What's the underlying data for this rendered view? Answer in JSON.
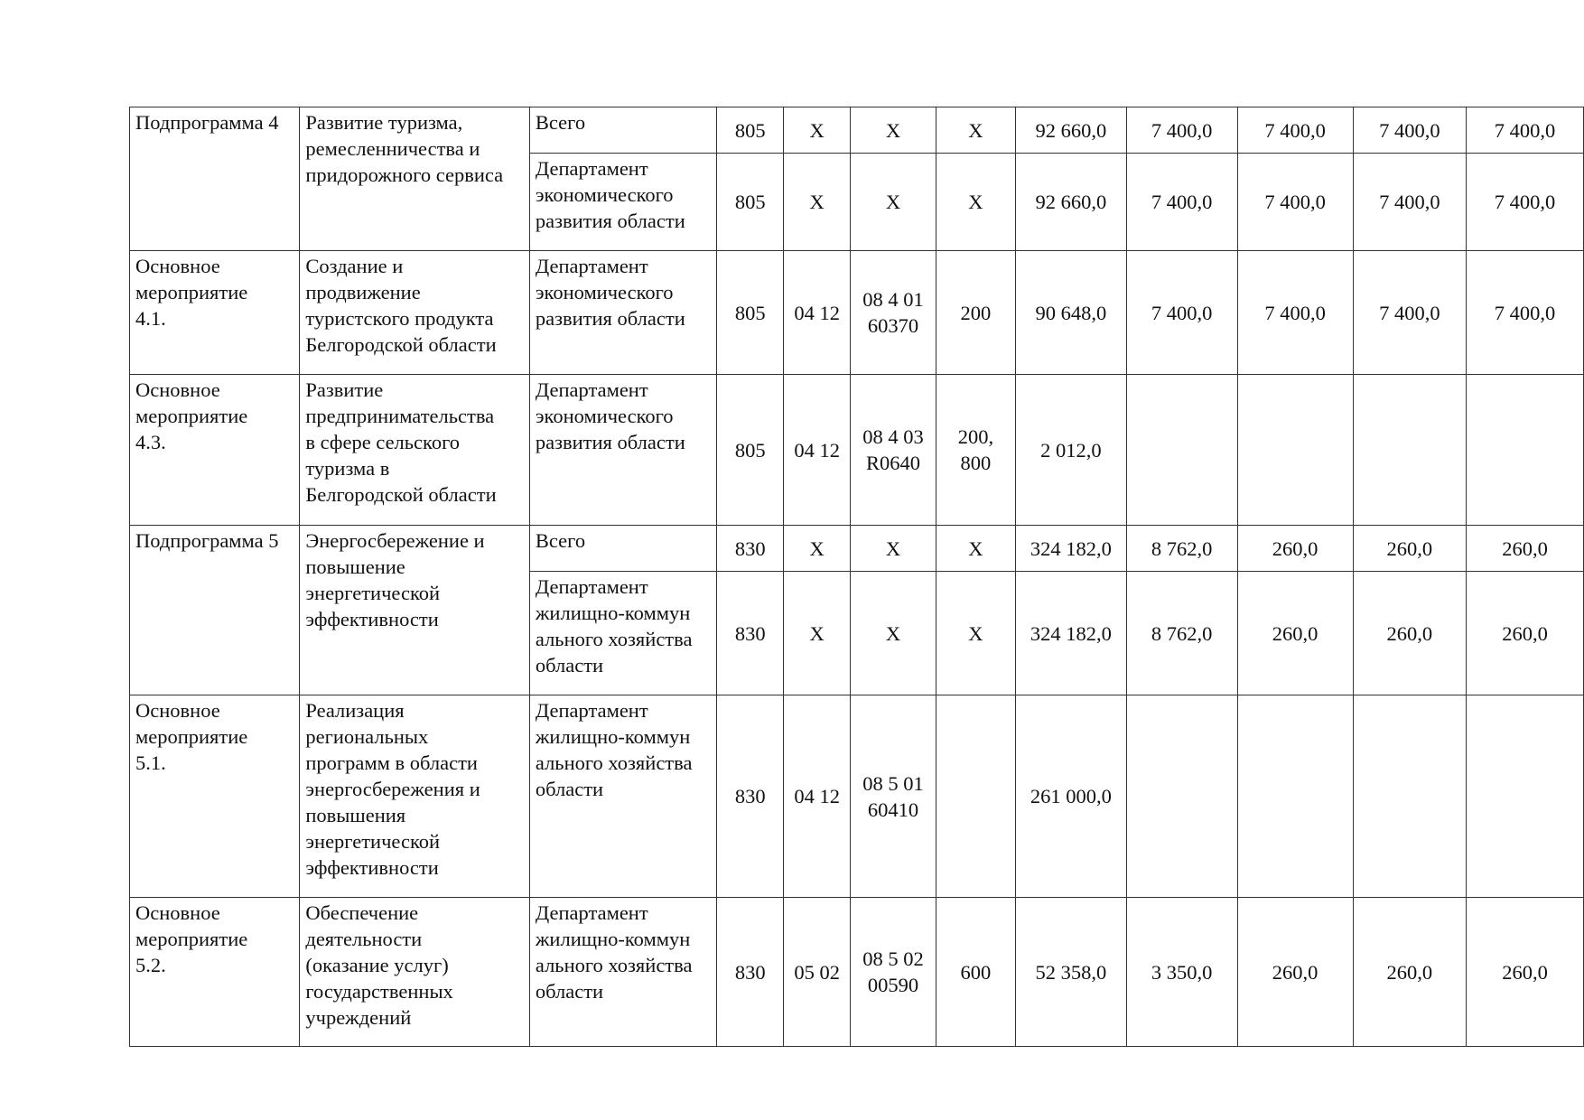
{
  "rows": [
    {
      "cells": [
        {
          "t": "Подпрограмма 4",
          "rs": 2
        },
        {
          "t": "Развитие туризма,\nремесленничества и\nпридорожного сервиса",
          "rs": 2
        },
        {
          "t": "Всего"
        },
        "805",
        "X",
        "X",
        "X",
        "92 660,0",
        "7 400,0",
        "7 400,0",
        "7 400,0",
        "7 400,0"
      ]
    },
    {
      "cells": [
        {
          "t": "Департамент\nэкономического\nразвития области"
        },
        "805",
        "X",
        "X",
        "X",
        "92 660,0",
        "7 400,0",
        "7 400,0",
        "7 400,0",
        "7 400,0"
      ]
    },
    {
      "cells": [
        {
          "t": "Основное\nмероприятие\n4.1."
        },
        {
          "t": "Создание и\nпродвижение\nтуристского продукта\nБелгородской области"
        },
        {
          "t": "Департамент\nэкономического\nразвития области"
        },
        "805",
        "04 12",
        "08 4 01\n60370",
        "200",
        "90 648,0",
        "7 400,0",
        "7 400,0",
        "7 400,0",
        "7 400,0"
      ]
    },
    {
      "cells": [
        {
          "t": "Основное\nмероприятие\n4.3."
        },
        {
          "t": "Развитие\nпредпринимательства\nв сфере сельского\nтуризма в\nБелгородской области"
        },
        {
          "t": "Департамент\nэкономического\nразвития области"
        },
        "805",
        "04 12",
        "08 4 03\nR0640",
        "200,\n800",
        "2 012,0",
        "",
        "",
        "",
        ""
      ]
    },
    {
      "cells": [
        {
          "t": "Подпрограмма 5",
          "rs": 2
        },
        {
          "t": "Энергосбережение и\nповышение\nэнергетической\nэффективности",
          "rs": 2
        },
        {
          "t": "Всего"
        },
        "830",
        "X",
        "X",
        "X",
        "324 182,0",
        "8 762,0",
        "260,0",
        "260,0",
        "260,0"
      ]
    },
    {
      "cells": [
        {
          "t": "Департамент\nжилищно-коммун\nального хозяйства\nобласти"
        },
        "830",
        "X",
        "X",
        "X",
        "324 182,0",
        "8 762,0",
        "260,0",
        "260,0",
        "260,0"
      ]
    },
    {
      "cells": [
        {
          "t": "Основное\nмероприятие\n5.1."
        },
        {
          "t": "Реализация\nрегиональных\nпрограмм в области\nэнергосбережения и\nповышения\nэнергетической\nэффективности"
        },
        {
          "t": "Департамент\nжилищно-коммун\nального хозяйства\nобласти"
        },
        "830",
        "04 12",
        "08 5 01\n60410",
        "",
        "261 000,0",
        "",
        "",
        "",
        ""
      ]
    },
    {
      "cells": [
        {
          "t": "Основное\nмероприятие\n5.2."
        },
        {
          "t": "Обеспечение\nдеятельности\n(оказание услуг)\nгосударственных\nучреждений"
        },
        {
          "t": "Департамент\nжилищно-коммун\nального хозяйства\nобласти"
        },
        "830",
        "05 02",
        "08 5 02\n00590",
        "600",
        "52 358,0",
        "3 350,0",
        "260,0",
        "260,0",
        "260,0"
      ]
    }
  ]
}
